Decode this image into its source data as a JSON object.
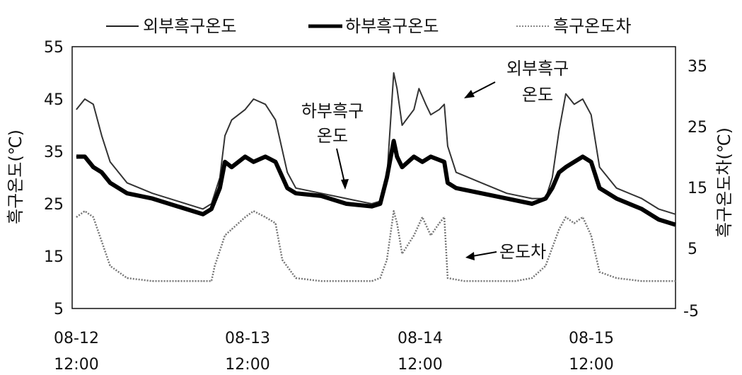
{
  "chart_data": {
    "type": "line",
    "legend": {
      "position": "top",
      "entries": [
        "외부흑구온도",
        "하부흑구온도",
        "흑구온도차"
      ]
    },
    "y_left": {
      "label": "흑구온도(℃)",
      "range": [
        5,
        55
      ],
      "ticks": [
        "55",
        "45",
        "35",
        "25",
        "15",
        "5"
      ]
    },
    "y_right": {
      "label": "흑구온도차(℃)",
      "range": [
        -5,
        38
      ],
      "ticks": [
        "35",
        "25",
        "15",
        "5",
        "-5"
      ]
    },
    "x": {
      "range": [
        0,
        3.55
      ],
      "ticks": [
        {
          "value": 0,
          "date": "08-12",
          "time": "12:00"
        },
        {
          "value": 1,
          "date": "08-13",
          "time": "12:00"
        },
        {
          "value": 2,
          "date": "08-14",
          "time": "12:00"
        },
        {
          "value": 3,
          "date": "08-15",
          "time": "12:00"
        }
      ]
    },
    "annotations": [
      {
        "line1": "하부흑구",
        "line2": "온도"
      },
      {
        "line1": "외부흑구",
        "line2": "온도"
      },
      {
        "line1": "온도차",
        "line2": ""
      }
    ],
    "series": [
      {
        "name": "외부흑구온도",
        "style": "thin",
        "points": [
          [
            0,
            43
          ],
          [
            0.05,
            45
          ],
          [
            0.1,
            44
          ],
          [
            0.15,
            38
          ],
          [
            0.2,
            33
          ],
          [
            0.3,
            29
          ],
          [
            0.45,
            27
          ],
          [
            0.6,
            25.5
          ],
          [
            0.75,
            24
          ],
          [
            0.8,
            25
          ],
          [
            0.85,
            30
          ],
          [
            0.88,
            38
          ],
          [
            0.92,
            41
          ],
          [
            1.0,
            43
          ],
          [
            1.05,
            45
          ],
          [
            1.12,
            44
          ],
          [
            1.18,
            41
          ],
          [
            1.25,
            31
          ],
          [
            1.3,
            28
          ],
          [
            1.45,
            27
          ],
          [
            1.6,
            26
          ],
          [
            1.75,
            25
          ],
          [
            1.8,
            25.5
          ],
          [
            1.84,
            30
          ],
          [
            1.88,
            50
          ],
          [
            1.9,
            47
          ],
          [
            1.93,
            40
          ],
          [
            2.0,
            43
          ],
          [
            2.03,
            47
          ],
          [
            2.07,
            44
          ],
          [
            2.1,
            42
          ],
          [
            2.15,
            43
          ],
          [
            2.18,
            44
          ],
          [
            2.2,
            36
          ],
          [
            2.25,
            31
          ],
          [
            2.4,
            29
          ],
          [
            2.55,
            27
          ],
          [
            2.7,
            26
          ],
          [
            2.78,
            26
          ],
          [
            2.82,
            30
          ],
          [
            2.86,
            39
          ],
          [
            2.9,
            46
          ],
          [
            2.95,
            44
          ],
          [
            3.0,
            45
          ],
          [
            3.05,
            42
          ],
          [
            3.1,
            32
          ],
          [
            3.2,
            28
          ],
          [
            3.35,
            26
          ],
          [
            3.45,
            24
          ],
          [
            3.55,
            23
          ]
        ]
      },
      {
        "name": "하부흑구온도",
        "style": "thick",
        "points": [
          [
            0,
            34
          ],
          [
            0.05,
            34
          ],
          [
            0.1,
            32
          ],
          [
            0.15,
            31
          ],
          [
            0.2,
            29
          ],
          [
            0.3,
            27
          ],
          [
            0.45,
            26
          ],
          [
            0.6,
            24.5
          ],
          [
            0.75,
            23
          ],
          [
            0.8,
            24
          ],
          [
            0.85,
            28
          ],
          [
            0.88,
            33
          ],
          [
            0.92,
            32
          ],
          [
            1.0,
            34
          ],
          [
            1.05,
            33
          ],
          [
            1.12,
            34
          ],
          [
            1.18,
            33
          ],
          [
            1.25,
            28
          ],
          [
            1.3,
            27
          ],
          [
            1.45,
            26.5
          ],
          [
            1.6,
            25
          ],
          [
            1.75,
            24.5
          ],
          [
            1.8,
            25
          ],
          [
            1.84,
            30
          ],
          [
            1.88,
            37
          ],
          [
            1.9,
            34
          ],
          [
            1.93,
            32
          ],
          [
            2.0,
            34
          ],
          [
            2.05,
            33
          ],
          [
            2.1,
            34
          ],
          [
            2.18,
            33
          ],
          [
            2.2,
            29
          ],
          [
            2.25,
            28
          ],
          [
            2.4,
            27
          ],
          [
            2.55,
            26
          ],
          [
            2.7,
            25
          ],
          [
            2.78,
            26
          ],
          [
            2.82,
            28
          ],
          [
            2.86,
            31
          ],
          [
            2.9,
            32
          ],
          [
            2.95,
            33
          ],
          [
            3.0,
            34
          ],
          [
            3.05,
            33
          ],
          [
            3.1,
            28
          ],
          [
            3.2,
            26
          ],
          [
            3.35,
            24
          ],
          [
            3.45,
            22
          ],
          [
            3.55,
            21
          ]
        ]
      },
      {
        "name": "흑구온도차",
        "style": "dotted",
        "points": [
          [
            0,
            10
          ],
          [
            0.05,
            11
          ],
          [
            0.1,
            10
          ],
          [
            0.15,
            6
          ],
          [
            0.2,
            2
          ],
          [
            0.3,
            0
          ],
          [
            0.45,
            -0.5
          ],
          [
            0.6,
            -0.5
          ],
          [
            0.75,
            -0.5
          ],
          [
            0.8,
            -0.5
          ],
          [
            0.82,
            2
          ],
          [
            0.88,
            7
          ],
          [
            0.92,
            8
          ],
          [
            1.0,
            10
          ],
          [
            1.05,
            11
          ],
          [
            1.12,
            10
          ],
          [
            1.18,
            9
          ],
          [
            1.22,
            3
          ],
          [
            1.3,
            0
          ],
          [
            1.45,
            -0.5
          ],
          [
            1.6,
            -0.5
          ],
          [
            1.75,
            -0.5
          ],
          [
            1.8,
            0
          ],
          [
            1.84,
            3
          ],
          [
            1.88,
            11
          ],
          [
            1.9,
            9
          ],
          [
            1.93,
            4
          ],
          [
            2.0,
            7
          ],
          [
            2.05,
            10
          ],
          [
            2.1,
            7
          ],
          [
            2.15,
            9
          ],
          [
            2.18,
            10
          ],
          [
            2.2,
            0
          ],
          [
            2.3,
            -0.5
          ],
          [
            2.45,
            -0.5
          ],
          [
            2.6,
            -0.5
          ],
          [
            2.7,
            0
          ],
          [
            2.78,
            2
          ],
          [
            2.82,
            5
          ],
          [
            2.86,
            8
          ],
          [
            2.9,
            10
          ],
          [
            2.95,
            9
          ],
          [
            3.0,
            10
          ],
          [
            3.05,
            7
          ],
          [
            3.1,
            1
          ],
          [
            3.2,
            0
          ],
          [
            3.35,
            -0.5
          ],
          [
            3.45,
            -0.5
          ],
          [
            3.55,
            -0.5
          ]
        ]
      }
    ]
  }
}
